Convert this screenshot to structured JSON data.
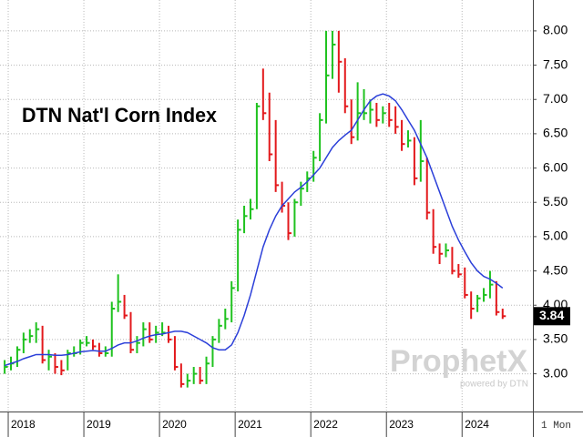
{
  "chart_data": {
    "type": "ohlc",
    "title": "DTN Nat'l Corn Index",
    "categories": [
      null,
      "2018",
      null,
      null,
      null,
      null,
      null,
      null,
      null,
      null,
      null,
      null,
      null,
      "2019",
      null,
      null,
      null,
      null,
      null,
      null,
      null,
      null,
      null,
      null,
      null,
      "2020",
      null,
      null,
      null,
      null,
      null,
      null,
      null,
      null,
      null,
      null,
      null,
      "2021",
      null,
      null,
      null,
      null,
      null,
      null,
      null,
      null,
      null,
      null,
      null,
      "2022",
      null,
      null,
      null,
      null,
      null,
      null,
      null,
      null,
      null,
      null,
      null,
      "2023",
      null,
      null,
      null,
      null,
      null,
      null,
      null,
      null,
      null,
      null,
      null,
      "2024",
      null,
      null,
      null,
      null,
      null,
      null
    ],
    "high": [
      3.2,
      3.25,
      3.4,
      3.6,
      3.65,
      3.75,
      3.7,
      3.35,
      3.3,
      3.2,
      3.35,
      3.4,
      3.5,
      3.55,
      3.5,
      3.45,
      3.4,
      4.05,
      4.45,
      4.15,
      3.9,
      3.55,
      3.75,
      3.75,
      3.7,
      3.75,
      3.7,
      3.55,
      3.15,
      3.0,
      3.1,
      3.1,
      3.25,
      3.55,
      3.8,
      3.95,
      4.35,
      5.25,
      5.45,
      5.55,
      6.95,
      7.45,
      7.1,
      6.7,
      5.8,
      5.5,
      5.55,
      5.8,
      5.95,
      6.25,
      6.8,
      8.0,
      8.0,
      8.0,
      7.6,
      7.0,
      7.25,
      7.15,
      7.0,
      6.95,
      6.9,
      6.95,
      6.9,
      6.7,
      6.55,
      6.45,
      6.7,
      6.15,
      5.4,
      4.9,
      4.9,
      4.85,
      4.6,
      4.55,
      4.2,
      4.15,
      4.25,
      4.5,
      4.35,
      3.95
    ],
    "low": [
      3.0,
      3.05,
      3.1,
      3.3,
      3.45,
      3.45,
      3.15,
      3.05,
      3.0,
      2.98,
      3.05,
      3.25,
      3.28,
      3.4,
      3.35,
      3.25,
      3.25,
      3.25,
      3.9,
      3.8,
      3.3,
      3.3,
      3.4,
      3.45,
      3.45,
      3.55,
      3.45,
      3.05,
      2.8,
      2.8,
      2.85,
      2.85,
      2.85,
      3.1,
      3.45,
      3.65,
      3.75,
      4.2,
      5.05,
      5.25,
      5.4,
      6.7,
      6.1,
      5.65,
      5.35,
      4.95,
      5.0,
      5.45,
      5.65,
      5.8,
      6.1,
      6.65,
      7.3,
      7.1,
      6.8,
      6.35,
      6.4,
      6.7,
      6.65,
      6.6,
      6.65,
      6.6,
      6.5,
      6.25,
      6.3,
      5.75,
      5.8,
      5.25,
      4.75,
      4.6,
      4.7,
      4.45,
      4.4,
      4.1,
      3.8,
      3.9,
      4.05,
      4.1,
      3.85,
      3.8
    ],
    "close": [
      3.1,
      3.15,
      3.35,
      3.5,
      3.55,
      3.65,
      3.2,
      3.25,
      3.1,
      3.05,
      3.3,
      3.3,
      3.45,
      3.45,
      3.4,
      3.3,
      3.3,
      3.95,
      4.05,
      3.85,
      3.35,
      3.45,
      3.65,
      3.5,
      3.6,
      3.6,
      3.5,
      3.1,
      2.85,
      2.9,
      3.0,
      2.9,
      3.15,
      3.5,
      3.7,
      3.8,
      4.25,
      5.1,
      5.3,
      5.4,
      6.9,
      6.8,
      6.2,
      5.75,
      5.45,
      5.05,
      5.5,
      5.7,
      5.85,
      6.15,
      6.7,
      7.35,
      7.8,
      7.55,
      6.9,
      6.45,
      6.8,
      6.8,
      6.85,
      6.7,
      6.8,
      6.7,
      6.6,
      6.35,
      6.4,
      5.85,
      6.1,
      5.35,
      4.85,
      4.75,
      4.8,
      4.5,
      4.45,
      4.15,
      3.95,
      4.1,
      4.15,
      4.3,
      3.9,
      3.84
    ],
    "up_color": "#1fc21f",
    "down_color": "#e3191c",
    "series": [
      {
        "color": "#2b3fd9",
        "values": [
          3.12,
          3.15,
          3.18,
          3.22,
          3.25,
          3.28,
          3.28,
          3.28,
          3.27,
          3.27,
          3.28,
          3.3,
          3.32,
          3.33,
          3.34,
          3.33,
          3.33,
          3.37,
          3.42,
          3.45,
          3.45,
          3.48,
          3.52,
          3.55,
          3.57,
          3.58,
          3.6,
          3.62,
          3.62,
          3.6,
          3.55,
          3.5,
          3.45,
          3.38,
          3.35,
          3.35,
          3.42,
          3.6,
          3.85,
          4.15,
          4.5,
          4.85,
          5.1,
          5.3,
          5.45,
          5.55,
          5.65,
          5.72,
          5.8,
          5.9,
          6.0,
          6.15,
          6.3,
          6.4,
          6.48,
          6.55,
          6.7,
          6.85,
          6.98,
          7.05,
          7.08,
          7.05,
          6.98,
          6.85,
          6.7,
          6.55,
          6.35,
          6.15,
          5.9,
          5.65,
          5.4,
          5.15,
          4.95,
          4.78,
          4.62,
          4.5,
          4.42,
          4.38,
          4.32,
          4.25
        ]
      }
    ],
    "ylim": [
      2.45,
      8.45
    ],
    "yticks": [
      {
        "value": 3,
        "label": "3.00"
      },
      {
        "value": 3.5,
        "label": "3.50"
      },
      {
        "value": 4,
        "label": "4.00"
      },
      {
        "value": 4.5,
        "label": "4.50"
      },
      {
        "value": 5,
        "label": "5.00"
      },
      {
        "value": 5.5,
        "label": "5.50"
      },
      {
        "value": 6,
        "label": "6.00"
      },
      {
        "value": 6.5,
        "label": "6.50"
      },
      {
        "value": 7,
        "label": "7.00"
      },
      {
        "value": 7.5,
        "label": "7.50"
      },
      {
        "value": 8,
        "label": "8.00"
      }
    ],
    "grid": true,
    "period": "1 Mon",
    "watermark": "ProphetX",
    "watermark_sub": "powered by DTN"
  }
}
